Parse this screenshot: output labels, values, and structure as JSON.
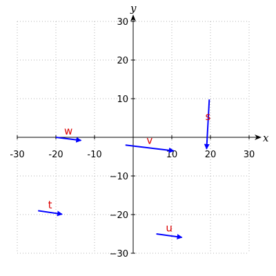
{
  "chart_data": {
    "type": "vector_field",
    "xlabel": "x",
    "ylabel": "y",
    "xlim": [
      -30,
      30
    ],
    "ylim": [
      -30,
      30
    ],
    "grid": true,
    "xticks": [
      -30,
      -20,
      -10,
      10,
      20,
      30
    ],
    "yticks": [
      -30,
      -20,
      -10,
      10,
      20,
      30
    ],
    "xtick_labels": [
      "-30",
      "-20",
      "-10",
      "10",
      "20",
      "30"
    ],
    "ytick_labels": [
      "−30",
      "−20",
      "−10",
      "10",
      "20",
      "30"
    ],
    "vector_color": "#0000ff",
    "label_color": "#dd0000",
    "vectors": [
      {
        "name": "s",
        "tail": [
          19.7,
          9.8
        ],
        "head": [
          19.0,
          -3.0
        ]
      },
      {
        "name": "w",
        "tail": [
          -20.0,
          0.0
        ],
        "head": [
          -13.5,
          -0.8
        ]
      },
      {
        "name": "v",
        "tail": [
          -2.0,
          -2.0
        ],
        "head": [
          10.5,
          -3.5
        ]
      },
      {
        "name": "t",
        "tail": [
          -24.6,
          -19.0
        ],
        "head": [
          -18.4,
          -19.9
        ]
      },
      {
        "name": "u",
        "tail": [
          6.0,
          -25.0
        ],
        "head": [
          12.6,
          -25.9
        ]
      }
    ]
  }
}
